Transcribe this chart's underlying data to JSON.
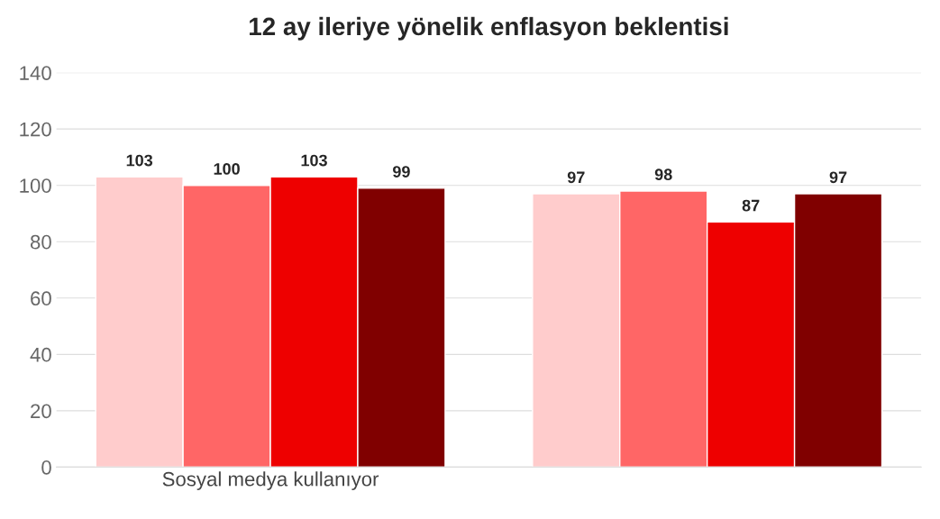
{
  "chart_data": {
    "type": "bar",
    "title": "12 ay ileriye yönelik enflasyon beklentisi",
    "categories": [
      "Sosyal medya kullanıyor",
      null
    ],
    "series": [
      {
        "color": "#ffcccc",
        "values": [
          103,
          97
        ]
      },
      {
        "color": "#ff6666",
        "values": [
          100,
          98
        ]
      },
      {
        "color": "#ee0000",
        "values": [
          103,
          87
        ]
      },
      {
        "color": "#800000",
        "values": [
          99,
          97
        ]
      }
    ],
    "ylim": [
      0,
      140
    ],
    "yticks": [
      0,
      20,
      40,
      60,
      80,
      100,
      120,
      140
    ],
    "grid": "y",
    "data_labels": true
  }
}
